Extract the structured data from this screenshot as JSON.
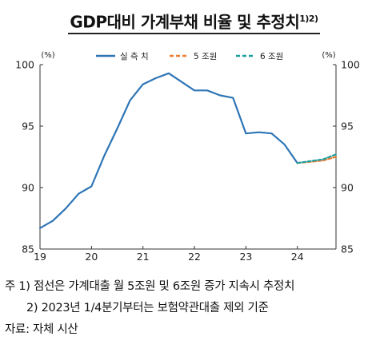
{
  "title": {
    "main": "GDP대비 가계부채 비율 및 추정치",
    "sup": "1)2)"
  },
  "chart_data": {
    "type": "line",
    "y_unit_left": "(%)",
    "y_unit_right": "(%)",
    "ylim": [
      85,
      100
    ],
    "yticks": [
      "85",
      "90",
      "95",
      "100"
    ],
    "xlim": [
      2019.0,
      2024.75
    ],
    "xtick_labels": [
      {
        "x": 2019.0,
        "label": "19"
      },
      {
        "x": 2020.0,
        "label": "20"
      },
      {
        "x": 2021.0,
        "label": "21"
      },
      {
        "x": 2022.0,
        "label": "22"
      },
      {
        "x": 2023.0,
        "label": "23"
      },
      {
        "x": 2024.0,
        "label": "24"
      }
    ],
    "grid": false,
    "legend_position": "top-center",
    "series": [
      {
        "name": "실 측 치",
        "color": "#2e75b6",
        "style": "solid",
        "x": [
          2019.0,
          2019.25,
          2019.5,
          2019.75,
          2020.0,
          2020.25,
          2020.5,
          2020.75,
          2021.0,
          2021.25,
          2021.5,
          2021.75,
          2022.0,
          2022.25,
          2022.5,
          2022.75,
          2023.0,
          2023.25,
          2023.5,
          2023.75,
          2024.0
        ],
        "values": [
          86.7,
          87.3,
          88.3,
          89.5,
          90.1,
          92.6,
          94.8,
          97.1,
          98.4,
          98.9,
          99.3,
          98.6,
          97.9,
          97.9,
          97.5,
          97.3,
          94.4,
          94.5,
          94.4,
          93.5,
          92.0
        ]
      },
      {
        "name": "5 조원",
        "color": "#ed7d31",
        "style": "dashed",
        "x": [
          2024.0,
          2024.25,
          2024.5,
          2024.75
        ],
        "values": [
          92.0,
          92.1,
          92.2,
          92.5
        ]
      },
      {
        "name": "6 조원",
        "color": "#1f9e9e",
        "style": "dashed",
        "x": [
          2024.0,
          2024.25,
          2024.5,
          2024.75
        ],
        "values": [
          92.0,
          92.15,
          92.3,
          92.7
        ]
      }
    ]
  },
  "notes": {
    "line1": "주  1) 점선은 가계대출 월 5조원 및 6조원 증가 지속시 추정치",
    "line2": "2) 2023년 1/4분기부터는 보험약관대출 제외 기준",
    "source": "자료: 자체 시산"
  }
}
